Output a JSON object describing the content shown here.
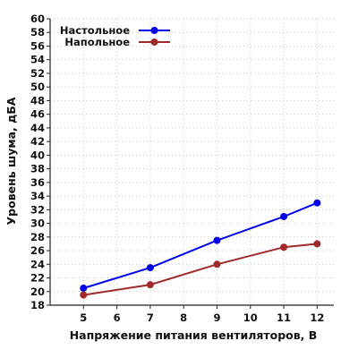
{
  "chart_data": {
    "type": "line",
    "title": "",
    "xlabel": "Напряжение питания вентиляторов, В",
    "ylabel": "Уровень шума, дБА",
    "x_ticks": [
      5,
      6,
      7,
      8,
      9,
      10,
      11,
      12
    ],
    "xlim": [
      4,
      12.5
    ],
    "ylim": [
      18,
      60
    ],
    "y_tick_step": 2,
    "grid": true,
    "legend_position": "top-left",
    "series": [
      {
        "name": "Настольное",
        "color": "#0000ee",
        "points": [
          [
            5,
            20.5
          ],
          [
            7,
            23.5
          ],
          [
            9,
            27.5
          ],
          [
            11,
            31
          ],
          [
            12,
            33
          ]
        ]
      },
      {
        "name": "Напольное",
        "color": "#a02a2a",
        "points": [
          [
            5,
            19.5
          ],
          [
            7,
            21
          ],
          [
            9,
            24
          ],
          [
            11,
            26.5
          ],
          [
            12,
            27
          ]
        ]
      }
    ]
  }
}
